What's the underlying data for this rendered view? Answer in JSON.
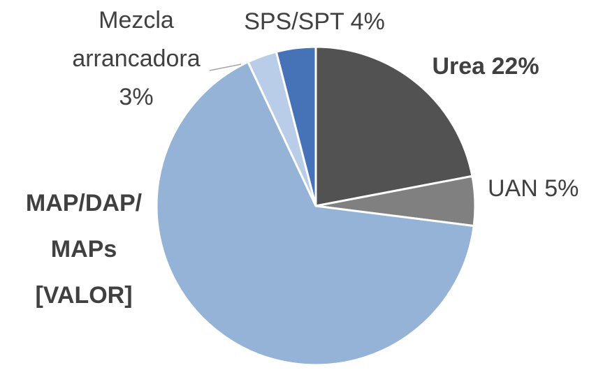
{
  "chart_data": {
    "type": "pie",
    "categories": [
      "Urea",
      "UAN",
      "MAP/DAP/ MAPs",
      "Mezcla arrancadora",
      "SPS/SPT"
    ],
    "values": [
      22,
      5,
      66,
      3,
      4
    ],
    "value_labels": [
      "22%",
      "5%",
      "[VALOR]",
      "3%",
      "4%"
    ],
    "colors": [
      "#525252",
      "#808080",
      "#95b3d7",
      "#b9cde9",
      "#4673b8"
    ],
    "start_angle": 0,
    "direction": "clockwise"
  }
}
